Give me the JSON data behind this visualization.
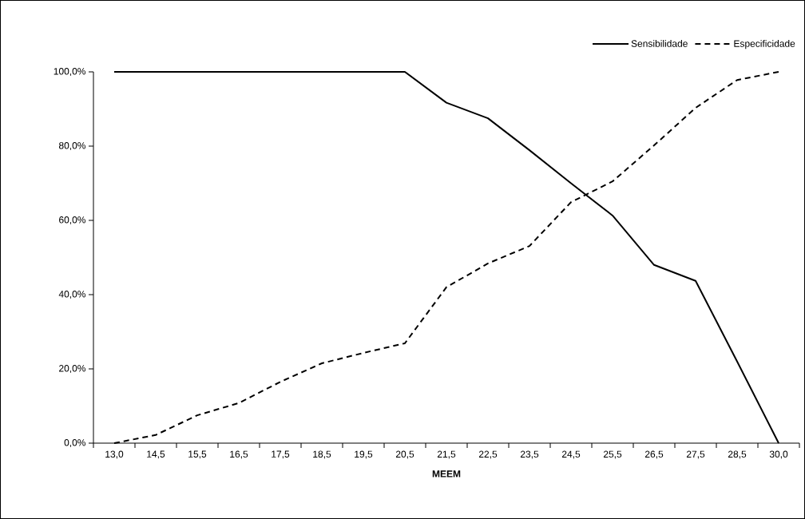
{
  "chart_data": {
    "type": "line",
    "xlabel": "MEEM",
    "categories": [
      "13,0",
      "14,5",
      "15,5",
      "16,5",
      "17,5",
      "18,5",
      "19,5",
      "20,5",
      "21,5",
      "22,5",
      "23,5",
      "24,5",
      "25,5",
      "26,5",
      "27,5",
      "28,5",
      "30,0"
    ],
    "series": [
      {
        "name": "Sensibilidade",
        "color": "#000000",
        "line_style": "solid",
        "values": [
          100,
          100,
          100,
          100,
          100,
          100,
          100,
          100,
          91.7,
          87.5,
          78.9,
          70.0,
          61.3,
          48.0,
          43.7,
          22.0,
          0
        ]
      },
      {
        "name": "Especificidade",
        "color": "#000000",
        "line_style": "dashed",
        "values": [
          0,
          2.2,
          7.5,
          10.8,
          16.5,
          21.5,
          24.3,
          26.9,
          42.0,
          48.4,
          53.1,
          64.9,
          70.5,
          80.2,
          90.3,
          97.8,
          100
        ]
      }
    ],
    "ylim": [
      0,
      100
    ],
    "yticks": [
      {
        "value": 0,
        "label": "0,0%"
      },
      {
        "value": 20,
        "label": "20,0%"
      },
      {
        "value": 40,
        "label": "40,0%"
      },
      {
        "value": 60,
        "label": "60,0%"
      },
      {
        "value": 80,
        "label": "80,0%"
      },
      {
        "value": 100,
        "label": "100,0%"
      }
    ],
    "grid": false,
    "legend": "top right",
    "marker": "none"
  }
}
